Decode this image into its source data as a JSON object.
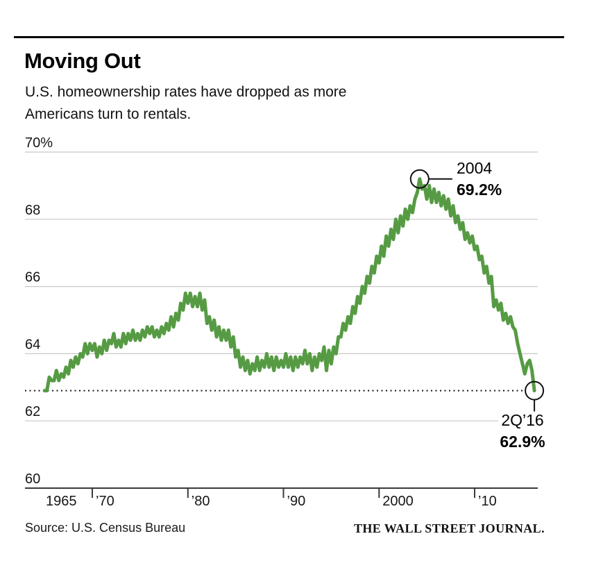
{
  "footer": {
    "source": "Source: U.S. Census Bureau",
    "brand": "THE WALL STREET JOURNAL."
  },
  "chart_data": {
    "type": "line",
    "title": "Moving Out",
    "subtitle": "U.S. homeownership rates have dropped as more Americans turn to rentals.",
    "unit": "%",
    "ylim": [
      60,
      70
    ],
    "yticks": [
      60,
      62,
      64,
      66,
      68,
      70
    ],
    "ytick_labels": [
      "60",
      "62",
      "64",
      "66",
      "68",
      "70%"
    ],
    "xticks": [
      1970,
      1980,
      1990,
      2000,
      2010
    ],
    "xtick_labels": [
      "’70",
      "’80",
      "’90",
      "2000",
      "’10"
    ],
    "first_x_label": "1965",
    "grid": true,
    "legend": "none",
    "line_color": "#569b44",
    "grid_color": "#c8c8c8",
    "axis_color": "#3a3a3a",
    "annotation_color": "#111111",
    "dotted_reference_value": 62.9,
    "series": [
      {
        "name": "U.S. homeownership rate (%)",
        "start_year": 1965,
        "step_years": 0.25,
        "values": [
          62.9,
          62.9,
          63.3,
          63.2,
          63.2,
          63.5,
          63.2,
          63.4,
          63.3,
          63.6,
          63.4,
          63.8,
          63.6,
          63.9,
          63.7,
          64.0,
          63.9,
          64.3,
          64.0,
          64.3,
          64.1,
          64.3,
          63.9,
          64.2,
          64.0,
          64.4,
          64.1,
          64.4,
          64.3,
          64.6,
          64.2,
          64.4,
          64.2,
          64.6,
          64.3,
          64.6,
          64.4,
          64.7,
          64.4,
          64.6,
          64.4,
          64.7,
          64.5,
          64.8,
          64.6,
          64.8,
          64.5,
          64.7,
          64.5,
          64.8,
          64.6,
          64.9,
          64.7,
          65.1,
          64.8,
          65.2,
          65.0,
          65.5,
          65.3,
          65.8,
          65.5,
          65.8,
          65.4,
          65.7,
          65.4,
          65.8,
          65.3,
          65.6,
          64.9,
          65.1,
          64.7,
          65.0,
          64.5,
          64.8,
          64.4,
          64.7,
          64.4,
          64.7,
          64.2,
          64.5,
          63.9,
          64.1,
          63.6,
          63.9,
          63.5,
          63.8,
          63.4,
          63.7,
          63.5,
          63.9,
          63.5,
          63.8,
          63.6,
          64.0,
          63.6,
          63.9,
          63.5,
          63.9,
          63.6,
          63.8,
          63.6,
          64.0,
          63.6,
          63.9,
          63.5,
          63.9,
          63.6,
          63.9,
          63.7,
          64.1,
          63.7,
          64.0,
          63.5,
          63.9,
          63.6,
          64.0,
          63.8,
          64.2,
          63.5,
          64.1,
          63.7,
          64.2,
          64.0,
          64.5,
          64.5,
          64.9,
          64.7,
          65.1,
          64.9,
          65.4,
          65.2,
          65.7,
          65.5,
          66.0,
          65.8,
          66.3,
          66.1,
          66.6,
          66.4,
          66.9,
          66.7,
          67.2,
          66.9,
          67.5,
          67.2,
          67.7,
          67.4,
          68.0,
          67.6,
          68.1,
          67.8,
          68.3,
          68.0,
          68.4,
          68.2,
          68.6,
          68.8,
          69.2,
          68.9,
          69.0,
          68.6,
          69.0,
          68.5,
          68.9,
          68.5,
          68.8,
          68.4,
          68.7,
          68.3,
          68.6,
          68.1,
          68.4,
          67.9,
          68.1,
          67.7,
          67.9,
          67.4,
          67.6,
          67.3,
          67.5,
          67.1,
          67.2,
          66.8,
          66.9,
          66.4,
          66.6,
          66.1,
          66.3,
          65.4,
          65.6,
          65.3,
          65.5,
          65.0,
          65.2,
          64.9,
          65.1,
          64.8,
          64.7,
          64.3,
          64.0,
          63.7,
          63.4,
          63.7,
          63.8,
          63.5,
          62.9
        ]
      }
    ],
    "annotations": [
      {
        "x": 2004.25,
        "y": 69.2,
        "line1": "2004",
        "line2": "69.2%"
      },
      {
        "x": 2016.25,
        "y": 62.9,
        "line1": "2Q’16",
        "line2": "62.9%"
      }
    ]
  }
}
